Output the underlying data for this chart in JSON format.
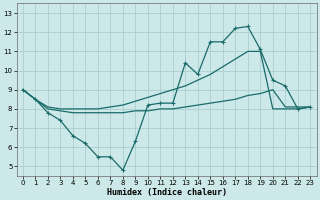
{
  "xlabel": "Humidex (Indice chaleur)",
  "bg_color": "#cde8e8",
  "grid_color": "#aacfcf",
  "line_color": "#1a6b6b",
  "xlim": [
    -0.5,
    23.5
  ],
  "ylim": [
    4.5,
    13.5
  ],
  "xticks": [
    0,
    1,
    2,
    3,
    4,
    5,
    6,
    7,
    8,
    9,
    10,
    11,
    12,
    13,
    14,
    15,
    16,
    17,
    18,
    19,
    20,
    21,
    22,
    23
  ],
  "yticks": [
    5,
    6,
    7,
    8,
    9,
    10,
    11,
    12,
    13
  ],
  "curve1_x": [
    0,
    1,
    2,
    3,
    4,
    5,
    6,
    7,
    8,
    9,
    10,
    11,
    12,
    13,
    14,
    15,
    16,
    17,
    18,
    19,
    20,
    21,
    22,
    23
  ],
  "curve1_y": [
    9.0,
    8.5,
    7.8,
    7.4,
    6.6,
    6.2,
    5.5,
    5.5,
    4.8,
    6.3,
    8.2,
    8.3,
    8.3,
    10.4,
    9.8,
    11.5,
    11.5,
    12.2,
    12.3,
    11.1,
    9.5,
    9.2,
    8.0,
    8.1
  ],
  "curve2_x": [
    0,
    1,
    2,
    3,
    4,
    5,
    6,
    7,
    8,
    9,
    10,
    11,
    12,
    13,
    14,
    15,
    16,
    17,
    18,
    19,
    20,
    21,
    22,
    23
  ],
  "curve2_y": [
    9.0,
    8.5,
    8.1,
    8.0,
    8.0,
    8.0,
    8.0,
    8.1,
    8.2,
    8.4,
    8.6,
    8.8,
    9.0,
    9.2,
    9.5,
    9.8,
    10.2,
    10.6,
    11.0,
    11.0,
    8.0,
    8.0,
    8.0,
    8.1
  ],
  "curve3_x": [
    0,
    1,
    2,
    3,
    4,
    5,
    6,
    7,
    8,
    9,
    10,
    11,
    12,
    13,
    14,
    15,
    16,
    17,
    18,
    19,
    20,
    21,
    22,
    23
  ],
  "curve3_y": [
    9.0,
    8.5,
    8.0,
    7.9,
    7.8,
    7.8,
    7.8,
    7.8,
    7.8,
    7.9,
    7.9,
    8.0,
    8.0,
    8.1,
    8.2,
    8.3,
    8.4,
    8.5,
    8.7,
    8.8,
    9.0,
    8.1,
    8.1,
    8.1
  ]
}
